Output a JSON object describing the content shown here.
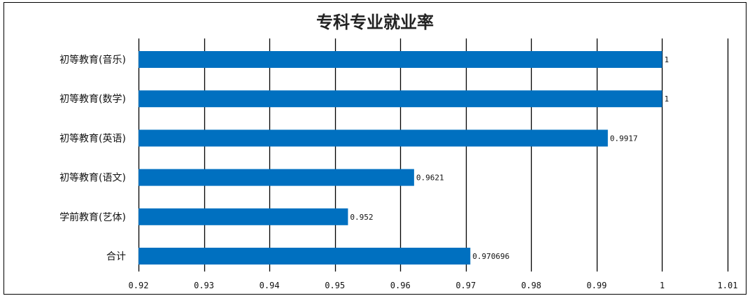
{
  "chart_data": {
    "type": "bar",
    "orientation": "horizontal",
    "title": "专科专业就业率",
    "categories": [
      "初等教育(音乐)",
      "初等教育(数学)",
      "初等教育(英语)",
      "初等教育(语文)",
      "学前教育(艺体)",
      "合计"
    ],
    "values": [
      1,
      1,
      0.9917,
      0.9621,
      0.952,
      0.970696
    ],
    "data_labels": [
      "1",
      "1",
      "0.9917",
      "0.9621",
      "0.952",
      "0.970696"
    ],
    "xlim": [
      0.92,
      1.01
    ],
    "x_ticks": [
      0.92,
      0.93,
      0.94,
      0.95,
      0.96,
      0.97,
      0.98,
      0.99,
      1,
      1.01
    ],
    "x_tick_labels": [
      "0.92",
      "0.93",
      "0.94",
      "0.95",
      "0.96",
      "0.97",
      "0.98",
      "0.99",
      "1",
      "1.01"
    ],
    "xlabel": "",
    "ylabel": "",
    "grid": "vertical",
    "legend": "none",
    "bar_color": "#0070c0",
    "grid_color": "#000000"
  }
}
